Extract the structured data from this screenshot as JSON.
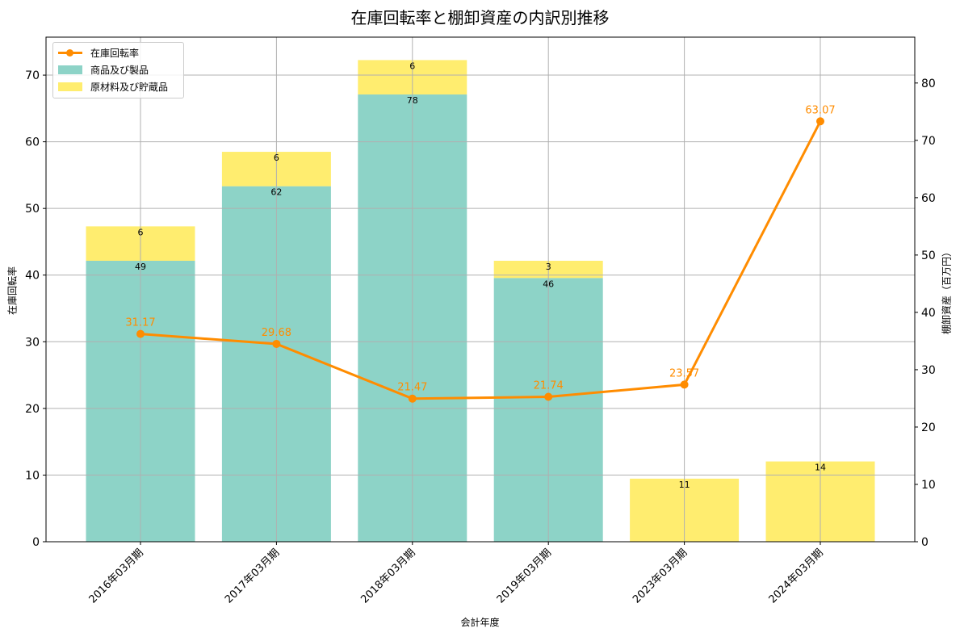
{
  "title": "在庫回転率と棚卸資産の内訳別推移",
  "xlabel": "会計年度",
  "ylabel_left": "在庫回転率",
  "ylabel_right": "棚卸資産（百万円）",
  "legend": {
    "items": [
      {
        "label": "在庫回転率",
        "type": "line",
        "color": "#ff8c00"
      },
      {
        "label": "商品及び製品",
        "type": "box",
        "color": "#8dd3c7"
      },
      {
        "label": "原材料及び貯蔵品",
        "type": "box",
        "color": "#ffed6f"
      }
    ]
  },
  "colors": {
    "line": "#ff8c00",
    "bar_products": "#8dd3c7",
    "bar_materials": "#ffed6f",
    "grid": "#b0b0b0"
  },
  "chart_data": {
    "type": "bar+line",
    "title": "在庫回転率と棚卸資産の内訳別推移",
    "xlabel": "会計年度",
    "ylabel": "在庫回転率",
    "ylabel_right": "棚卸資産（百万円）",
    "categories": [
      "2016年03月期",
      "2017年03月期",
      "2018年03月期",
      "2019年03月期",
      "2023年03月期",
      "2024年03月期"
    ],
    "series": [
      {
        "name": "商品及び製品",
        "type": "bar",
        "axis": "right",
        "stack": "inventory",
        "values": [
          49,
          62,
          78,
          46,
          0,
          0
        ],
        "labels": [
          "49",
          "62",
          "78",
          "46",
          "",
          ""
        ]
      },
      {
        "name": "原材料及び貯蔵品",
        "type": "bar",
        "axis": "right",
        "stack": "inventory",
        "values": [
          6,
          6,
          6,
          3,
          11,
          14
        ],
        "labels": [
          "6",
          "6",
          "6",
          "3",
          "11",
          "14"
        ]
      },
      {
        "name": "在庫回転率",
        "type": "line",
        "axis": "left",
        "values": [
          31.17,
          29.68,
          21.47,
          21.74,
          23.57,
          63.07
        ],
        "labels": [
          "31.17",
          "29.68",
          "21.47",
          "21.74",
          "23.57",
          "63.07"
        ]
      }
    ],
    "ylim": [
      0,
      75.7
    ],
    "ylim_right": [
      0,
      88
    ],
    "yticks_left": [
      0,
      10,
      20,
      30,
      40,
      50,
      60,
      70
    ],
    "yticks_right": [
      0,
      10,
      20,
      30,
      40,
      50,
      60,
      70,
      80
    ],
    "grid": true,
    "legend_position": "upper left",
    "xtick_rotation": 45
  }
}
